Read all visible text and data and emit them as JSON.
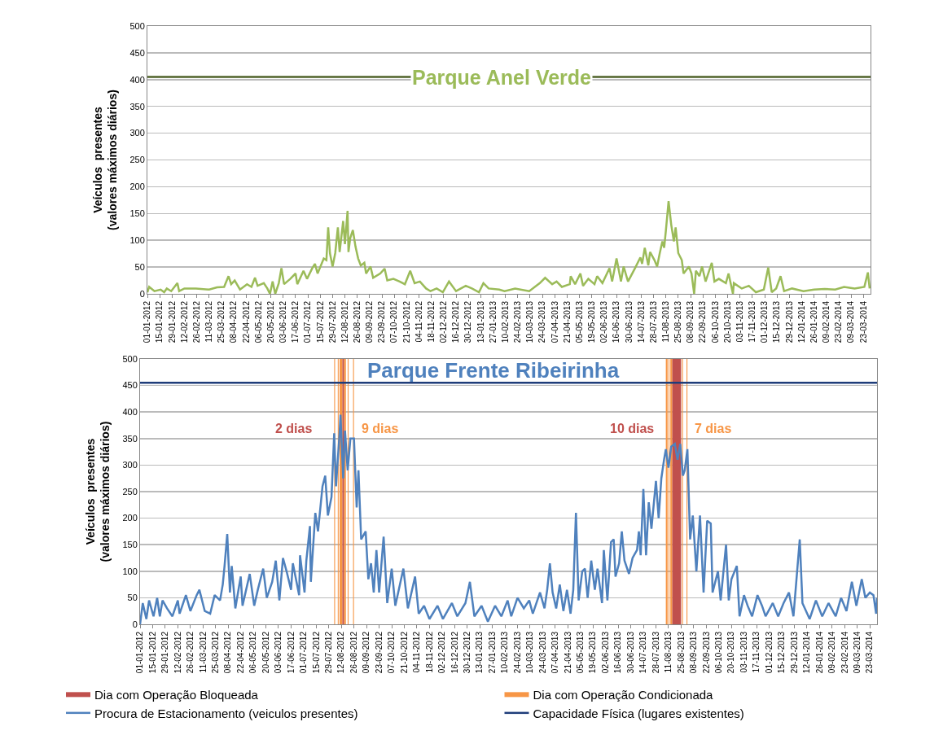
{
  "chart_data": [
    {
      "type": "line",
      "title": "Parque Anel Verde",
      "ylabel": "Veículos  presentes\n(valores máximos diários)",
      "xlim": [
        "2012-01-01",
        "2014-03-31"
      ],
      "ylim": [
        0,
        500
      ],
      "yticks": [
        0,
        50,
        100,
        150,
        200,
        250,
        300,
        350,
        400,
        450,
        500
      ],
      "xticks": [
        {
          "value": "2012-01-01",
          "label": "01-01-2012"
        },
        {
          "value": "2012-01-15",
          "label": "15-01-2012"
        },
        {
          "value": "2012-01-29",
          "label": "29-01-2012"
        },
        {
          "value": "2012-02-12",
          "label": "12-02-2012"
        },
        {
          "value": "2012-02-26",
          "label": "26-02-2012"
        },
        {
          "value": "2012-03-11",
          "label": "11-03-2012"
        },
        {
          "value": "2012-03-25",
          "label": "25-03-2012"
        },
        {
          "value": "2012-04-08",
          "label": "08-04-2012"
        },
        {
          "value": "2012-04-22",
          "label": "22-04-2012"
        },
        {
          "value": "2012-05-06",
          "label": "06-05-2012"
        },
        {
          "value": "2012-05-20",
          "label": "20-05-2012"
        },
        {
          "value": "2012-06-03",
          "label": "03-06-2012"
        },
        {
          "value": "2012-06-17",
          "label": "17-06-2012"
        },
        {
          "value": "2012-07-01",
          "label": "01-07-2012"
        },
        {
          "value": "2012-07-15",
          "label": "15-07-2012"
        },
        {
          "value": "2012-07-29",
          "label": "29-07-2012"
        },
        {
          "value": "2012-08-12",
          "label": "12-08-2012"
        },
        {
          "value": "2012-08-26",
          "label": "26-08-2012"
        },
        {
          "value": "2012-09-09",
          "label": "09-09-2012"
        },
        {
          "value": "2012-09-23",
          "label": "23-09-2012"
        },
        {
          "value": "2012-10-07",
          "label": "07-10-2012"
        },
        {
          "value": "2012-10-21",
          "label": "21-10-2012"
        },
        {
          "value": "2012-11-04",
          "label": "04-11-2012"
        },
        {
          "value": "2012-11-18",
          "label": "18-11-2012"
        },
        {
          "value": "2012-12-02",
          "label": "02-12-2012"
        },
        {
          "value": "2012-12-16",
          "label": "16-12-2012"
        },
        {
          "value": "2012-12-30",
          "label": "30-12-2012"
        },
        {
          "value": "2013-01-13",
          "label": "13-01-2013"
        },
        {
          "value": "2013-01-27",
          "label": "27-01-2013"
        },
        {
          "value": "2013-02-10",
          "label": "10-02-2013"
        },
        {
          "value": "2013-02-24",
          "label": "24-02-2013"
        },
        {
          "value": "2013-03-10",
          "label": "10-03-2013"
        },
        {
          "value": "2013-03-24",
          "label": "24-03-2013"
        },
        {
          "value": "2013-04-07",
          "label": "07-04-2013"
        },
        {
          "value": "2013-04-21",
          "label": "21-04-2013"
        },
        {
          "value": "2013-05-05",
          "label": "05-05-2013"
        },
        {
          "value": "2013-05-19",
          "label": "19-05-2013"
        },
        {
          "value": "2013-06-02",
          "label": "02-06-2013"
        },
        {
          "value": "2013-06-16",
          "label": "16-06-2013"
        },
        {
          "value": "2013-06-30",
          "label": "30-06-2013"
        },
        {
          "value": "2013-07-14",
          "label": "14-07-2013"
        },
        {
          "value": "2013-07-28",
          "label": "28-07-2013"
        },
        {
          "value": "2013-08-11",
          "label": "11-08-2013"
        },
        {
          "value": "2013-08-25",
          "label": "25-08-2013"
        },
        {
          "value": "2013-09-08",
          "label": "08-09-2013"
        },
        {
          "value": "2013-09-22",
          "label": "22-09-2013"
        },
        {
          "value": "2013-10-06",
          "label": "06-10-2013"
        },
        {
          "value": "2013-10-20",
          "label": "20-10-2013"
        },
        {
          "value": "2013-11-03",
          "label": "03-11-2013"
        },
        {
          "value": "2013-11-17",
          "label": "17-11-2013"
        },
        {
          "value": "2013-12-01",
          "label": "01-12-2013"
        },
        {
          "value": "2013-12-15",
          "label": "15-12-2013"
        },
        {
          "value": "2013-12-29",
          "label": "29-12-2013"
        },
        {
          "value": "2014-01-12",
          "label": "12-01-2014"
        },
        {
          "value": "2014-01-26",
          "label": "26-01-2014"
        },
        {
          "value": "2014-02-09",
          "label": "09-02-2014"
        },
        {
          "value": "2014-02-23",
          "label": "23-02-2014"
        },
        {
          "value": "2014-03-09",
          "label": "09-03-2014"
        },
        {
          "value": "2014-03-23",
          "label": "23-03-2014"
        }
      ],
      "grid": "y",
      "ref_lines": [
        {
          "axis": "y",
          "value": 405,
          "color": "#4f6228"
        }
      ],
      "series": [
        {
          "color": "#9bbb59",
          "x": [
            "2012-01-01",
            "2012-01-03",
            "2012-01-09",
            "2012-01-16",
            "2012-01-20",
            "2012-01-23",
            "2012-01-28",
            "2012-02-04",
            "2012-02-06",
            "2012-02-12",
            "2012-02-25",
            "2012-03-11",
            "2012-03-20",
            "2012-03-28",
            "2012-04-02",
            "2012-04-05",
            "2012-04-09",
            "2012-04-15",
            "2012-04-23",
            "2012-04-28",
            "2012-05-02",
            "2012-05-05",
            "2012-05-12",
            "2012-05-16",
            "2012-05-19",
            "2012-05-22",
            "2012-05-25",
            "2012-05-29",
            "2012-06-01",
            "2012-06-04",
            "2012-06-11",
            "2012-06-17",
            "2012-06-19",
            "2012-06-26",
            "2012-06-30",
            "2012-07-06",
            "2012-07-09",
            "2012-07-12",
            "2012-07-19",
            "2012-07-22",
            "2012-07-24",
            "2012-07-26",
            "2012-07-29",
            "2012-08-01",
            "2012-08-04",
            "2012-08-06",
            "2012-08-10",
            "2012-08-12",
            "2012-08-15",
            "2012-08-16",
            "2012-08-18",
            "2012-08-21",
            "2012-08-24",
            "2012-08-27",
            "2012-08-30",
            "2012-09-03",
            "2012-09-05",
            "2012-09-10",
            "2012-09-13",
            "2012-09-21",
            "2012-09-26",
            "2012-09-29",
            "2012-10-06",
            "2012-10-13",
            "2012-10-19",
            "2012-10-25",
            "2012-10-30",
            "2012-11-05",
            "2012-11-12",
            "2012-11-17",
            "2012-11-24",
            "2012-12-01",
            "2012-12-08",
            "2012-12-16",
            "2012-12-27",
            "2013-01-03",
            "2013-01-11",
            "2013-01-16",
            "2013-01-22",
            "2013-02-03",
            "2013-02-09",
            "2013-02-21",
            "2013-03-09",
            "2013-03-21",
            "2013-03-27",
            "2013-04-04",
            "2013-04-09",
            "2013-04-15",
            "2013-04-24",
            "2013-04-25",
            "2013-04-30",
            "2013-05-06",
            "2013-05-09",
            "2013-05-15",
            "2013-05-22",
            "2013-05-25",
            "2013-05-31",
            "2013-06-08",
            "2013-06-11",
            "2013-06-16",
            "2013-06-21",
            "2013-06-24",
            "2013-06-29",
            "2013-07-07",
            "2013-07-13",
            "2013-07-15",
            "2013-07-18",
            "2013-07-22",
            "2013-07-24",
            "2013-07-29",
            "2013-08-01",
            "2013-08-04",
            "2013-08-07",
            "2013-08-09",
            "2013-08-11",
            "2013-08-14",
            "2013-08-17",
            "2013-08-20",
            "2013-08-22",
            "2013-08-25",
            "2013-08-29",
            "2013-08-31",
            "2013-09-06",
            "2013-09-09",
            "2013-09-12",
            "2013-09-14",
            "2013-09-18",
            "2013-09-21",
            "2013-09-25",
            "2013-10-02",
            "2013-10-05",
            "2013-10-10",
            "2013-10-18",
            "2013-10-21",
            "2013-10-26",
            "2013-10-27",
            "2013-11-05",
            "2013-11-13",
            "2013-11-21",
            "2013-11-30",
            "2013-12-05",
            "2013-12-09",
            "2013-12-14",
            "2013-12-19",
            "2013-12-23",
            "2014-01-01",
            "2014-01-14",
            "2014-01-26",
            "2014-02-07",
            "2014-02-19",
            "2014-03-01",
            "2014-03-13",
            "2014-03-24",
            "2014-03-28",
            "2014-03-30"
          ],
          "values": [
            3,
            13,
            5,
            8,
            3,
            10,
            5,
            20,
            5,
            10,
            10,
            8,
            12,
            13,
            33,
            18,
            25,
            8,
            18,
            13,
            30,
            15,
            20,
            10,
            0,
            23,
            0,
            20,
            48,
            18,
            28,
            38,
            18,
            43,
            28,
            48,
            56,
            38,
            66,
            63,
            124,
            76,
            51,
            76,
            124,
            78,
            136,
            93,
            155,
            78,
            104,
            119,
            88,
            66,
            53,
            58,
            38,
            51,
            30,
            38,
            47,
            25,
            28,
            23,
            18,
            43,
            20,
            23,
            10,
            5,
            10,
            3,
            23,
            5,
            15,
            10,
            3,
            20,
            10,
            8,
            5,
            10,
            5,
            20,
            30,
            18,
            23,
            13,
            18,
            33,
            18,
            38,
            15,
            28,
            18,
            33,
            20,
            48,
            23,
            66,
            23,
            51,
            23,
            48,
            68,
            56,
            86,
            53,
            78,
            63,
            51,
            76,
            98,
            86,
            119,
            173,
            129,
            98,
            124,
            76,
            63,
            38,
            51,
            38,
            0,
            43,
            33,
            51,
            23,
            58,
            23,
            28,
            20,
            38,
            0,
            20,
            10,
            15,
            3,
            8,
            49,
            3,
            10,
            33,
            5,
            10,
            5,
            8,
            9,
            8,
            13,
            10,
            13,
            40,
            10
          ]
        }
      ]
    },
    {
      "type": "line",
      "title": "Parque Frente Ribeirinha",
      "ylabel": "Veículos  presentes\n(valores máximos diários)",
      "xlim": [
        "2012-01-01",
        "2014-03-31"
      ],
      "ylim": [
        0,
        500
      ],
      "yticks": [
        0,
        50,
        100,
        150,
        200,
        250,
        300,
        350,
        400,
        450,
        500
      ],
      "xticks": [
        {
          "value": "2012-01-01",
          "label": "01-01-2012"
        },
        {
          "value": "2012-01-15",
          "label": "15-01-2012"
        },
        {
          "value": "2012-01-29",
          "label": "29-01-2012"
        },
        {
          "value": "2012-02-12",
          "label": "12-02-2012"
        },
        {
          "value": "2012-02-26",
          "label": "26-02-2012"
        },
        {
          "value": "2012-03-11",
          "label": "11-03-2012"
        },
        {
          "value": "2012-03-25",
          "label": "25-03-2012"
        },
        {
          "value": "2012-04-08",
          "label": "08-04-2012"
        },
        {
          "value": "2012-04-22",
          "label": "22-04-2012"
        },
        {
          "value": "2012-05-06",
          "label": "06-05-2012"
        },
        {
          "value": "2012-05-20",
          "label": "20-05-2012"
        },
        {
          "value": "2012-06-03",
          "label": "03-06-2012"
        },
        {
          "value": "2012-06-17",
          "label": "17-06-2012"
        },
        {
          "value": "2012-07-01",
          "label": "01-07-2012"
        },
        {
          "value": "2012-07-15",
          "label": "15-07-2012"
        },
        {
          "value": "2012-07-29",
          "label": "29-07-2012"
        },
        {
          "value": "2012-08-12",
          "label": "12-08-2012"
        },
        {
          "value": "2012-08-26",
          "label": "26-08-2012"
        },
        {
          "value": "2012-09-09",
          "label": "09-09-2012"
        },
        {
          "value": "2012-09-23",
          "label": "23-09-2012"
        },
        {
          "value": "2012-10-07",
          "label": "07-10-2012"
        },
        {
          "value": "2012-10-21",
          "label": "21-10-2012"
        },
        {
          "value": "2012-11-04",
          "label": "04-11-2012"
        },
        {
          "value": "2012-11-18",
          "label": "18-11-2012"
        },
        {
          "value": "2012-12-02",
          "label": "02-12-2012"
        },
        {
          "value": "2012-12-16",
          "label": "16-12-2012"
        },
        {
          "value": "2012-12-30",
          "label": "30-12-2012"
        },
        {
          "value": "2013-01-13",
          "label": "13-01-2013"
        },
        {
          "value": "2013-01-27",
          "label": "27-01-2013"
        },
        {
          "value": "2013-02-10",
          "label": "10-02-2013"
        },
        {
          "value": "2013-02-24",
          "label": "24-02-2013"
        },
        {
          "value": "2013-03-10",
          "label": "10-03-2013"
        },
        {
          "value": "2013-03-24",
          "label": "24-03-2013"
        },
        {
          "value": "2013-04-07",
          "label": "07-04-2013"
        },
        {
          "value": "2013-04-21",
          "label": "21-04-2013"
        },
        {
          "value": "2013-05-05",
          "label": "05-05-2013"
        },
        {
          "value": "2013-05-19",
          "label": "19-05-2013"
        },
        {
          "value": "2013-06-02",
          "label": "02-06-2013"
        },
        {
          "value": "2013-06-16",
          "label": "16-06-2013"
        },
        {
          "value": "2013-06-30",
          "label": "30-06-2013"
        },
        {
          "value": "2013-07-14",
          "label": "14-07-2013"
        },
        {
          "value": "2013-07-28",
          "label": "28-07-2013"
        },
        {
          "value": "2013-08-11",
          "label": "11-08-2013"
        },
        {
          "value": "2013-08-25",
          "label": "25-08-2013"
        },
        {
          "value": "2013-09-08",
          "label": "08-09-2013"
        },
        {
          "value": "2013-09-22",
          "label": "22-09-2013"
        },
        {
          "value": "2013-10-06",
          "label": "06-10-2013"
        },
        {
          "value": "2013-10-20",
          "label": "20-10-2013"
        },
        {
          "value": "2013-11-03",
          "label": "03-11-2013"
        },
        {
          "value": "2013-11-17",
          "label": "17-11-2013"
        },
        {
          "value": "2013-12-01",
          "label": "01-12-2013"
        },
        {
          "value": "2013-12-15",
          "label": "15-12-2013"
        },
        {
          "value": "2013-12-29",
          "label": "29-12-2013"
        },
        {
          "value": "2014-01-12",
          "label": "12-01-2014"
        },
        {
          "value": "2014-01-26",
          "label": "26-01-2014"
        },
        {
          "value": "2014-02-09",
          "label": "09-02-2014"
        },
        {
          "value": "2014-02-23",
          "label": "23-02-2014"
        },
        {
          "value": "2014-03-09",
          "label": "09-03-2014"
        },
        {
          "value": "2014-03-23",
          "label": "23-03-2014"
        }
      ],
      "grid": "y",
      "legend": "bottom",
      "annotations": [
        "2 dias",
        "9 dias",
        "10 dias",
        "7 dias"
      ],
      "bands": [
        {
          "axis": "x",
          "from": "2012-08-13",
          "to": "2012-08-15",
          "color": "#c0504d",
          "label": "Dia com Operação Bloqueada"
        },
        {
          "axis": "x",
          "from": "2013-08-15",
          "to": "2013-08-25",
          "color": "#c0504d"
        },
        {
          "axis": "x",
          "from": "2012-08-04",
          "to": "2012-08-05",
          "color": "#f79646",
          "label": "Dia com Operação Condicionada"
        },
        {
          "axis": "x",
          "from": "2012-08-08",
          "to": "2012-08-09",
          "color": "#f79646"
        },
        {
          "axis": "x",
          "from": "2012-08-10",
          "to": "2012-08-13",
          "color": "#f79646"
        },
        {
          "axis": "x",
          "from": "2012-08-15",
          "to": "2012-08-17",
          "color": "#f79646"
        },
        {
          "axis": "x",
          "from": "2012-08-19",
          "to": "2012-08-20",
          "color": "#f79646"
        },
        {
          "axis": "x",
          "from": "2012-08-25",
          "to": "2012-08-26",
          "color": "#f79646"
        },
        {
          "axis": "x",
          "from": "2013-08-08",
          "to": "2013-08-10",
          "color": "#f79646"
        },
        {
          "axis": "x",
          "from": "2013-08-11",
          "to": "2013-08-12",
          "color": "#f79646"
        },
        {
          "axis": "x",
          "from": "2013-08-13",
          "to": "2013-08-15",
          "color": "#f79646"
        },
        {
          "axis": "x",
          "from": "2013-08-26",
          "to": "2013-08-27",
          "color": "#f79646"
        },
        {
          "axis": "x",
          "from": "2013-08-31",
          "to": "2013-09-01",
          "color": "#f79646"
        }
      ],
      "series": [
        {
          "name": "Procura de Estacionamento (veiculos presentes)",
          "color": "#4f81bd",
          "x": [
            "2012-01-01",
            "2012-01-04",
            "2012-01-08",
            "2012-01-11",
            "2012-01-16",
            "2012-01-20",
            "2012-01-23",
            "2012-01-26",
            "2012-01-31",
            "2012-02-06",
            "2012-02-12",
            "2012-02-14",
            "2012-02-21",
            "2012-02-26",
            "2012-03-04",
            "2012-03-07",
            "2012-03-13",
            "2012-03-19",
            "2012-03-24",
            "2012-03-30",
            "2012-04-02",
            "2012-04-04",
            "2012-04-07",
            "2012-04-10",
            "2012-04-12",
            "2012-04-16",
            "2012-04-22",
            "2012-04-24",
            "2012-05-02",
            "2012-05-07",
            "2012-05-11",
            "2012-05-17",
            "2012-05-21",
            "2012-05-27",
            "2012-05-31",
            "2012-06-04",
            "2012-06-08",
            "2012-06-12",
            "2012-06-17",
            "2012-06-19",
            "2012-06-26",
            "2012-06-27",
            "2012-07-02",
            "2012-07-04",
            "2012-07-08",
            "2012-07-09",
            "2012-07-14",
            "2012-07-17",
            "2012-07-22",
            "2012-07-25",
            "2012-07-28",
            "2012-08-01",
            "2012-08-04",
            "2012-08-06",
            "2012-08-10",
            "2012-08-11",
            "2012-08-14",
            "2012-08-16",
            "2012-08-19",
            "2012-08-22",
            "2012-08-26",
            "2012-08-29",
            "2012-08-31",
            "2012-09-03",
            "2012-09-08",
            "2012-09-11",
            "2012-09-14",
            "2012-09-17",
            "2012-09-20",
            "2012-09-23",
            "2012-09-28",
            "2012-10-02",
            "2012-10-07",
            "2012-10-11",
            "2012-10-20",
            "2012-10-25",
            "2012-11-02",
            "2012-11-06",
            "2012-11-12",
            "2012-11-18",
            "2012-11-27",
            "2012-12-03",
            "2012-12-13",
            "2012-12-19",
            "2012-12-28",
            "2013-01-02",
            "2013-01-07",
            "2013-01-15",
            "2013-01-22",
            "2013-01-30",
            "2013-02-06",
            "2013-02-13",
            "2013-02-17",
            "2013-02-24",
            "2013-03-03",
            "2013-03-09",
            "2013-03-13",
            "2013-03-21",
            "2013-03-26",
            "2013-03-29",
            "2013-04-01",
            "2013-04-04",
            "2013-04-08",
            "2013-04-12",
            "2013-04-16",
            "2013-04-20",
            "2013-04-24",
            "2013-04-27",
            "2013-04-30",
            "2013-05-03",
            "2013-05-07",
            "2013-05-10",
            "2013-05-13",
            "2013-05-17",
            "2013-05-21",
            "2013-05-24",
            "2013-05-29",
            "2013-05-31",
            "2013-06-04",
            "2013-06-08",
            "2013-06-11",
            "2013-06-13",
            "2013-06-17",
            "2013-06-20",
            "2013-06-23",
            "2013-06-28",
            "2013-07-02",
            "2013-07-07",
            "2013-07-09",
            "2013-07-11",
            "2013-07-14",
            "2013-07-17",
            "2013-07-20",
            "2013-07-23",
            "2013-07-28",
            "2013-07-31",
            "2013-08-03",
            "2013-08-06",
            "2013-08-08",
            "2013-08-11",
            "2013-08-14",
            "2013-08-18",
            "2013-08-21",
            "2013-08-24",
            "2013-08-27",
            "2013-08-29",
            "2013-09-01",
            "2013-09-04",
            "2013-09-07",
            "2013-09-11",
            "2013-09-15",
            "2013-09-19",
            "2013-09-23",
            "2013-09-27",
            "2013-09-29",
            "2013-10-05",
            "2013-10-08",
            "2013-10-14",
            "2013-10-17",
            "2013-10-20",
            "2013-10-26",
            "2013-10-29",
            "2013-11-03",
            "2013-11-07",
            "2013-11-12",
            "2013-11-18",
            "2013-11-23",
            "2013-11-27",
            "2013-12-05",
            "2013-12-11",
            "2013-12-17",
            "2013-12-23",
            "2013-12-28",
            "2014-01-04",
            "2014-01-07",
            "2014-01-15",
            "2014-01-22",
            "2014-01-29",
            "2014-02-05",
            "2014-02-13",
            "2014-02-19",
            "2014-02-25",
            "2014-03-03",
            "2014-03-08",
            "2014-03-14",
            "2014-03-18",
            "2014-03-23",
            "2014-03-27",
            "2014-03-30",
            "2014-03-31"
          ],
          "values": [
            0,
            40,
            10,
            45,
            15,
            50,
            15,
            45,
            30,
            15,
            45,
            20,
            55,
            25,
            55,
            65,
            25,
            20,
            55,
            45,
            75,
            110,
            170,
            60,
            110,
            30,
            90,
            35,
            95,
            35,
            65,
            105,
            50,
            80,
            120,
            45,
            125,
            100,
            65,
            115,
            55,
            130,
            60,
            120,
            185,
            80,
            210,
            175,
            260,
            280,
            205,
            240,
            360,
            260,
            360,
            395,
            275,
            365,
            290,
            350,
            350,
            220,
            290,
            160,
            175,
            85,
            115,
            60,
            140,
            60,
            165,
            40,
            105,
            35,
            105,
            30,
            90,
            20,
            35,
            10,
            35,
            10,
            40,
            15,
            40,
            80,
            15,
            35,
            5,
            35,
            15,
            45,
            15,
            50,
            30,
            45,
            20,
            60,
            30,
            65,
            115,
            60,
            30,
            75,
            25,
            65,
            20,
            65,
            210,
            45,
            100,
            105,
            50,
            120,
            65,
            105,
            40,
            140,
            45,
            155,
            160,
            90,
            115,
            175,
            120,
            95,
            125,
            140,
            175,
            130,
            255,
            130,
            230,
            180,
            270,
            200,
            275,
            310,
            330,
            295,
            335,
            340,
            310,
            340,
            280,
            290,
            330,
            160,
            205,
            100,
            205,
            60,
            195,
            190,
            60,
            100,
            45,
            150,
            45,
            85,
            110,
            15,
            55,
            35,
            15,
            55,
            35,
            15,
            40,
            15,
            40,
            60,
            15,
            160,
            40,
            10,
            45,
            15,
            40,
            15,
            50,
            25,
            80,
            35,
            85,
            50,
            60,
            55,
            20,
            50
          ]
        },
        {
          "name": "Capacidade Física (lugares existentes)",
          "color": "#1f3d7a",
          "x": [
            "2012-01-01",
            "2014-03-31"
          ],
          "values": [
            455,
            455
          ]
        }
      ]
    }
  ]
}
